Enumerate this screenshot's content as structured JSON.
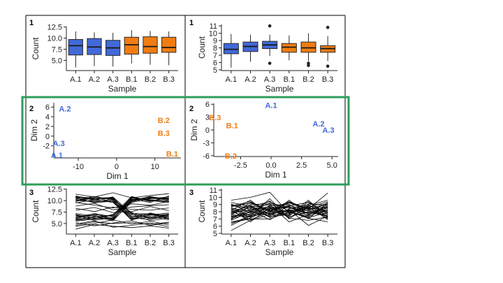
{
  "figure": {
    "highlight_color": "#2e9e5b",
    "colors": {
      "A": "#4169d9",
      "B": "#f07d12",
      "axis": "#222222",
      "box_edge": "#2a2a2a"
    }
  },
  "chart_data": [
    {
      "id": "p1l",
      "type": "box",
      "panel_label": "1",
      "xlabel": "Sample",
      "ylabel": "Count",
      "categories": [
        "A.1",
        "A.2",
        "A.3",
        "B.1",
        "B.2",
        "B.3"
      ],
      "group": [
        "A",
        "A",
        "A",
        "B",
        "B",
        "B"
      ],
      "ylim": [
        2.7,
        12.6
      ],
      "yticks": [
        5.0,
        7.5,
        10.0,
        12.5
      ],
      "ytick_labels": [
        "5.0",
        "7.5",
        "10.0",
        "12.5"
      ],
      "boxes": [
        {
          "wlo": 3.4,
          "q1": 6.2,
          "med": 8.3,
          "q3": 9.7,
          "whi": 11.5,
          "out": []
        },
        {
          "wlo": 3.7,
          "q1": 6.3,
          "med": 8.0,
          "q3": 9.9,
          "whi": 11.3,
          "out": []
        },
        {
          "wlo": 3.6,
          "q1": 6.1,
          "med": 7.8,
          "q3": 9.5,
          "whi": 11.2,
          "out": []
        },
        {
          "wlo": 4.3,
          "q1": 6.4,
          "med": 8.5,
          "q3": 10.2,
          "whi": 11.8,
          "out": []
        },
        {
          "wlo": 4.0,
          "q1": 6.6,
          "med": 8.1,
          "q3": 10.3,
          "whi": 11.6,
          "out": []
        },
        {
          "wlo": 3.9,
          "q1": 6.8,
          "med": 7.9,
          "q3": 10.2,
          "whi": 11.5,
          "out": []
        }
      ]
    },
    {
      "id": "p1r",
      "type": "box",
      "panel_label": "1",
      "xlabel": "Sample",
      "ylabel": "Count",
      "categories": [
        "A.1",
        "A.2",
        "A.3",
        "B.1",
        "B.2",
        "B.3"
      ],
      "group": [
        "A",
        "A",
        "A",
        "B",
        "B",
        "B"
      ],
      "ylim": [
        4.9,
        11.2
      ],
      "yticks": [
        5,
        6,
        7,
        8,
        9,
        10,
        11
      ],
      "ytick_labels": [
        "5",
        "6",
        "7",
        "8",
        "9",
        "10",
        "11"
      ],
      "boxes": [
        {
          "wlo": 5.3,
          "q1": 7.2,
          "med": 7.8,
          "q3": 8.6,
          "whi": 9.9,
          "out": []
        },
        {
          "wlo": 6.1,
          "q1": 7.5,
          "med": 8.2,
          "q3": 8.8,
          "whi": 9.8,
          "out": []
        },
        {
          "wlo": 6.9,
          "q1": 7.9,
          "med": 8.4,
          "q3": 8.9,
          "whi": 9.8,
          "out": [
            11.0,
            5.9
          ]
        },
        {
          "wlo": 6.3,
          "q1": 7.4,
          "med": 8.1,
          "q3": 8.6,
          "whi": 9.7,
          "out": []
        },
        {
          "wlo": 6.2,
          "q1": 7.4,
          "med": 8.0,
          "q3": 8.8,
          "whi": 10.0,
          "out": [
            5.9,
            5.6
          ]
        },
        {
          "wlo": 6.2,
          "q1": 7.4,
          "med": 7.9,
          "q3": 8.3,
          "whi": 9.6,
          "out": [
            10.8,
            5.5
          ]
        }
      ]
    },
    {
      "id": "p2l",
      "type": "scatter",
      "panel_label": "2",
      "xlabel": "Dim 1",
      "ylabel": "Dim 2",
      "xlim": [
        -16.4,
        16.8
      ],
      "ylim": [
        -4.5,
        6.9
      ],
      "xticks": [
        -10,
        0,
        10
      ],
      "xtick_labels": [
        "-10",
        "0",
        "10"
      ],
      "yticks": [
        -2,
        0,
        2,
        4,
        6
      ],
      "ytick_labels": [
        "-2",
        "0",
        "2",
        "4",
        "6"
      ],
      "points": [
        {
          "label": "A.2",
          "group": "A",
          "x": -13.5,
          "y": 5.7
        },
        {
          "label": "A.3",
          "group": "A",
          "x": -15.1,
          "y": -1.5
        },
        {
          "label": "A.1",
          "group": "A",
          "x": -15.6,
          "y": -3.9
        },
        {
          "label": "B.2",
          "group": "B",
          "x": 12.3,
          "y": 3.3
        },
        {
          "label": "B.3",
          "group": "B",
          "x": 12.3,
          "y": 0.6
        },
        {
          "label": "B.1",
          "group": "B",
          "x": 14.5,
          "y": -3.6
        }
      ]
    },
    {
      "id": "p2r",
      "type": "scatter",
      "panel_label": "2",
      "xlabel": "Dim 1",
      "ylabel": "Dim 2",
      "xlim": [
        -4.7,
        5.5
      ],
      "ylim": [
        -6.2,
        6.2
      ],
      "xticks": [
        -2.5,
        0.0,
        2.5,
        5.0
      ],
      "xtick_labels": [
        "-2.5",
        "0.0",
        "2.5",
        "5.0"
      ],
      "yticks": [
        -6,
        -3,
        0,
        3,
        6
      ],
      "ytick_labels": [
        "-6",
        "-3",
        "0",
        "3",
        "6"
      ],
      "points": [
        {
          "label": "A.1",
          "group": "A",
          "x": 0.0,
          "y": 5.8
        },
        {
          "label": "A.2",
          "group": "A",
          "x": 3.9,
          "y": 1.5
        },
        {
          "label": "A.3",
          "group": "A",
          "x": 4.7,
          "y": 0.0
        },
        {
          "label": "B.3",
          "group": "B",
          "x": -4.6,
          "y": 2.9
        },
        {
          "label": "B.1",
          "group": "B",
          "x": -3.2,
          "y": 1.1
        },
        {
          "label": "B.2",
          "group": "B",
          "x": -3.3,
          "y": -6.0
        }
      ]
    },
    {
      "id": "p3l",
      "type": "line",
      "panel_label": "3",
      "xlabel": "Sample",
      "ylabel": "Count",
      "categories": [
        "A.1",
        "A.2",
        "A.3",
        "B.1",
        "B.2",
        "B.3"
      ],
      "ylim": [
        2.7,
        12.6
      ],
      "yticks": [
        5.0,
        7.5,
        10.0,
        12.5
      ],
      "ytick_labels": [
        "5.0",
        "7.5",
        "10.0",
        "12.5"
      ],
      "series": [
        [
          10.9,
          10.1,
          10.8,
          7.2,
          7.1,
          6.3
        ],
        [
          10.3,
          10.6,
          9.8,
          6.3,
          6.8,
          7.0
        ],
        [
          9.8,
          10.9,
          10.2,
          5.9,
          6.4,
          6.9
        ],
        [
          10.5,
          9.6,
          10.4,
          7.1,
          5.6,
          6.2
        ],
        [
          10.8,
          10.2,
          9.6,
          6.0,
          6.9,
          7.3
        ],
        [
          9.9,
          10.5,
          10.7,
          6.5,
          7.2,
          6.1
        ],
        [
          10.2,
          9.7,
          10.1,
          7.4,
          6.0,
          6.8
        ],
        [
          11.0,
          10.3,
          10.5,
          6.6,
          6.5,
          5.8
        ],
        [
          10.0,
          9.9,
          9.8,
          5.7,
          7.3,
          6.5
        ],
        [
          10.6,
          10.8,
          10.3,
          7.3,
          6.2,
          7.1
        ],
        [
          9.5,
          10.2,
          10.6,
          6.2,
          5.9,
          6.6
        ],
        [
          10.7,
          9.5,
          9.9,
          6.9,
          7.0,
          6.0
        ],
        [
          6.2,
          6.8,
          5.9,
          10.6,
          9.8,
          10.9
        ],
        [
          5.8,
          6.4,
          6.7,
          10.1,
          10.5,
          10.3
        ],
        [
          6.9,
          5.7,
          6.3,
          9.7,
          10.8,
          10.0
        ],
        [
          6.5,
          7.1,
          6.0,
          10.8,
          10.0,
          9.6
        ],
        [
          5.5,
          6.0,
          7.0,
          10.3,
          9.6,
          11.0
        ],
        [
          7.2,
          6.6,
          5.6,
          9.9,
          10.7,
          10.5
        ],
        [
          6.0,
          7.2,
          6.5,
          10.5,
          10.2,
          9.9
        ],
        [
          6.7,
          5.9,
          6.9,
          10.9,
          9.9,
          10.6
        ],
        [
          5.9,
          6.5,
          6.2,
          10.0,
          10.9,
          10.2
        ],
        [
          7.0,
          6.2,
          5.8,
          9.6,
          10.4,
          10.8
        ],
        [
          6.3,
          6.9,
          6.6,
          10.7,
          10.1,
          9.7
        ],
        [
          5.7,
          6.1,
          6.1,
          10.2,
          10.6,
          10.4
        ],
        [
          9.6,
          9.0,
          8.4,
          9.3,
          9.0,
          9.8
        ],
        [
          8.8,
          9.4,
          8.0,
          8.6,
          8.9,
          9.1
        ],
        [
          4.6,
          5.4,
          5.0,
          5.2,
          4.8,
          5.3
        ],
        [
          4.4,
          5.0,
          5.8,
          4.9,
          5.5,
          4.7
        ],
        [
          5.2,
          4.5,
          5.1,
          5.6,
          4.6,
          5.1
        ],
        [
          8.3,
          7.6,
          8.6,
          8.1,
          7.9,
          8.4
        ],
        [
          7.9,
          8.5,
          7.4,
          7.6,
          8.7,
          7.8
        ],
        [
          11.4,
          10.8,
          11.7,
          10.6,
          11.1,
          11.5
        ],
        [
          4.9,
          5.6,
          4.2,
          4.6,
          5.1,
          4.3
        ],
        [
          3.8,
          4.8,
          4.4,
          4.1,
          4.5,
          4.0
        ]
      ]
    },
    {
      "id": "p3r",
      "type": "line",
      "panel_label": "3",
      "xlabel": "Sample",
      "ylabel": "Count",
      "categories": [
        "A.1",
        "A.2",
        "A.3",
        "B.1",
        "B.2",
        "B.3"
      ],
      "ylim": [
        4.9,
        11.2
      ],
      "yticks": [
        5,
        6,
        7,
        8,
        9,
        10,
        11
      ],
      "ytick_labels": [
        "5",
        "6",
        "7",
        "8",
        "9",
        "10",
        "11"
      ],
      "series": [
        [
          9.6,
          10.0,
          10.7,
          7.8,
          8.9,
          9.6
        ],
        [
          5.4,
          6.8,
          7.6,
          8.3,
          6.1,
          7.4
        ],
        [
          8.8,
          9.4,
          8.1,
          9.3,
          8.4,
          10.6
        ],
        [
          7.2,
          8.1,
          9.5,
          7.0,
          8.8,
          8.0
        ],
        [
          6.3,
          7.5,
          8.3,
          8.0,
          7.1,
          6.6
        ],
        [
          8.1,
          6.9,
          7.9,
          8.8,
          9.3,
          7.8
        ],
        [
          7.7,
          8.6,
          9.0,
          6.6,
          7.6,
          8.6
        ],
        [
          9.1,
          7.8,
          8.6,
          8.5,
          8.2,
          9.1
        ],
        [
          6.9,
          8.9,
          7.3,
          7.6,
          9.6,
          7.2
        ],
        [
          8.4,
          7.2,
          8.9,
          9.0,
          7.4,
          8.3
        ],
        [
          7.0,
          8.4,
          7.7,
          8.2,
          8.6,
          9.4
        ],
        [
          8.7,
          9.2,
          8.2,
          7.3,
          8.0,
          7.5
        ],
        [
          6.6,
          7.1,
          8.4,
          8.7,
          7.8,
          8.8
        ],
        [
          7.9,
          8.2,
          6.9,
          8.4,
          9.0,
          7.0
        ],
        [
          9.3,
          8.7,
          9.4,
          8.1,
          7.3,
          8.7
        ],
        [
          7.4,
          7.6,
          8.0,
          9.2,
          8.3,
          9.2
        ],
        [
          8.2,
          9.6,
          7.5,
          7.8,
          8.7,
          6.9
        ],
        [
          6.8,
          8.0,
          9.2,
          8.6,
          7.7,
          8.1
        ],
        [
          8.9,
          8.3,
          8.7,
          7.5,
          9.1,
          8.9
        ],
        [
          7.6,
          7.3,
          8.1,
          8.9,
          8.1,
          7.7
        ],
        [
          8.0,
          8.8,
          7.2,
          8.3,
          7.5,
          9.0
        ],
        [
          7.3,
          7.9,
          8.8,
          7.9,
          8.5,
          8.2
        ],
        [
          8.6,
          7.4,
          7.8,
          8.2,
          7.9,
          7.4
        ],
        [
          7.8,
          9.0,
          9.1,
          7.7,
          8.8,
          8.5
        ],
        [
          6.5,
          7.0,
          7.0,
          8.0,
          7.2,
          7.9
        ],
        [
          9.0,
          8.5,
          8.3,
          9.4,
          8.4,
          8.4
        ],
        [
          7.1,
          7.7,
          8.5,
          7.4,
          9.4,
          7.6
        ],
        [
          8.5,
          8.1,
          7.4,
          8.8,
          7.0,
          9.3
        ],
        [
          7.5,
          9.3,
          8.0,
          8.1,
          8.2,
          8.0
        ],
        [
          8.3,
          6.6,
          8.6,
          7.2,
          8.6,
          7.1
        ],
        [
          7.7,
          8.6,
          7.6,
          9.6,
          7.6,
          8.8
        ],
        [
          6.1,
          7.4,
          9.8,
          7.1,
          6.8,
          7.3
        ]
      ]
    }
  ]
}
